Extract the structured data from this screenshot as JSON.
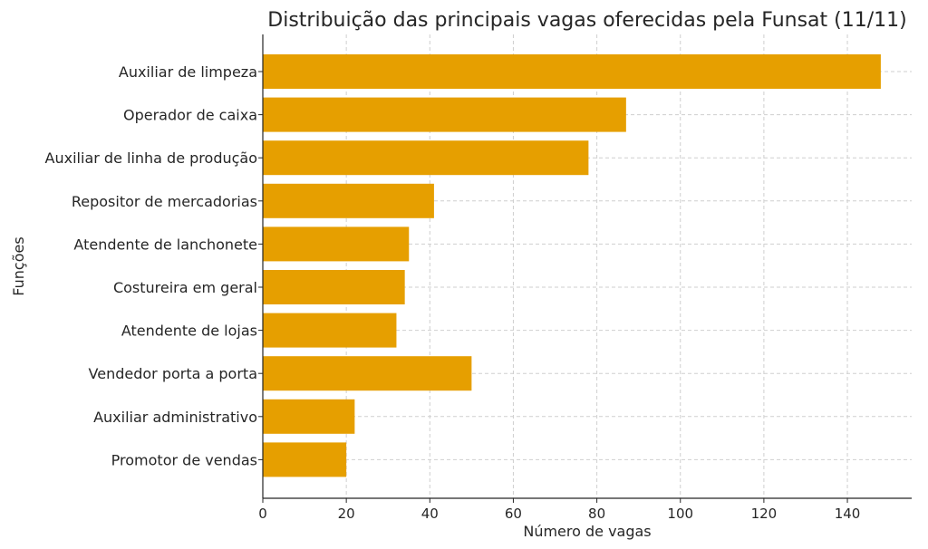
{
  "chart_data": {
    "type": "bar",
    "orientation": "horizontal",
    "title": "Distribuição das principais vagas oferecidas pela Funsat (11/11)",
    "xlabel": "Número de vagas",
    "ylabel": "Funções",
    "categories": [
      "Auxiliar de limpeza",
      "Operador de caixa",
      "Auxiliar de linha de produção",
      "Repositor de mercadorias",
      "Atendente de lanchonete",
      "Costureira em geral",
      "Atendente de lojas",
      "Vendedor porta a porta",
      "Auxiliar administrativo",
      "Promotor de vendas"
    ],
    "values": [
      148,
      87,
      78,
      41,
      35,
      34,
      32,
      50,
      22,
      20
    ],
    "xlim": [
      0,
      155.4
    ],
    "xticks": [
      0,
      20,
      40,
      60,
      80,
      100,
      120,
      140
    ],
    "grid": true,
    "bar_color": "#E69F00"
  }
}
